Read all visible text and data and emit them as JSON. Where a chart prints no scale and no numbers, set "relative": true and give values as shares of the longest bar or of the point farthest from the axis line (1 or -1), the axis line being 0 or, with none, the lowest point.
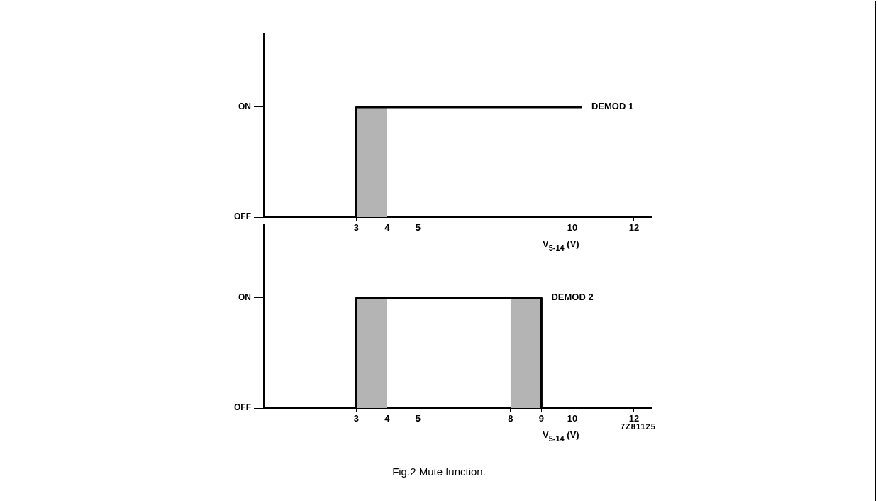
{
  "chart_data": [
    {
      "type": "line",
      "relative": true,
      "xlabel": "V$_{5-14}$ (V)",
      "xlim": [
        0,
        12.6
      ],
      "xticks": [
        3,
        4,
        5,
        10,
        12
      ],
      "y_categories": [
        "ON",
        "OFF"
      ],
      "grid": false,
      "legend": false,
      "series": [
        {
          "name": "DEMOD 1",
          "color": "#000000",
          "x": [
            3,
            3,
            10.3
          ],
          "values": [
            0,
            1,
            1
          ]
        }
      ],
      "bands": [
        {
          "axis": "x",
          "from": 3,
          "to": 4,
          "color": "#b4b4b4"
        }
      ]
    },
    {
      "type": "line",
      "relative": true,
      "xlabel": "V$_{5-14}$ (V)",
      "xlim": [
        0,
        12.6
      ],
      "xticks": [
        3,
        4,
        5,
        8,
        9,
        10,
        12
      ],
      "y_categories": [
        "ON",
        "OFF"
      ],
      "grid": false,
      "legend": false,
      "series": [
        {
          "name": "DEMOD 2",
          "color": "#000000",
          "x": [
            3,
            3,
            9,
            9
          ],
          "values": [
            0,
            1,
            1,
            0
          ]
        }
      ],
      "bands": [
        {
          "axis": "x",
          "from": 3,
          "to": 4,
          "color": "#b4b4b4"
        },
        {
          "axis": "x",
          "from": 8,
          "to": 9,
          "color": "#b4b4b4"
        }
      ],
      "annotations": [
        "7Z81125",
        "Fig.2  Mute function."
      ]
    }
  ]
}
